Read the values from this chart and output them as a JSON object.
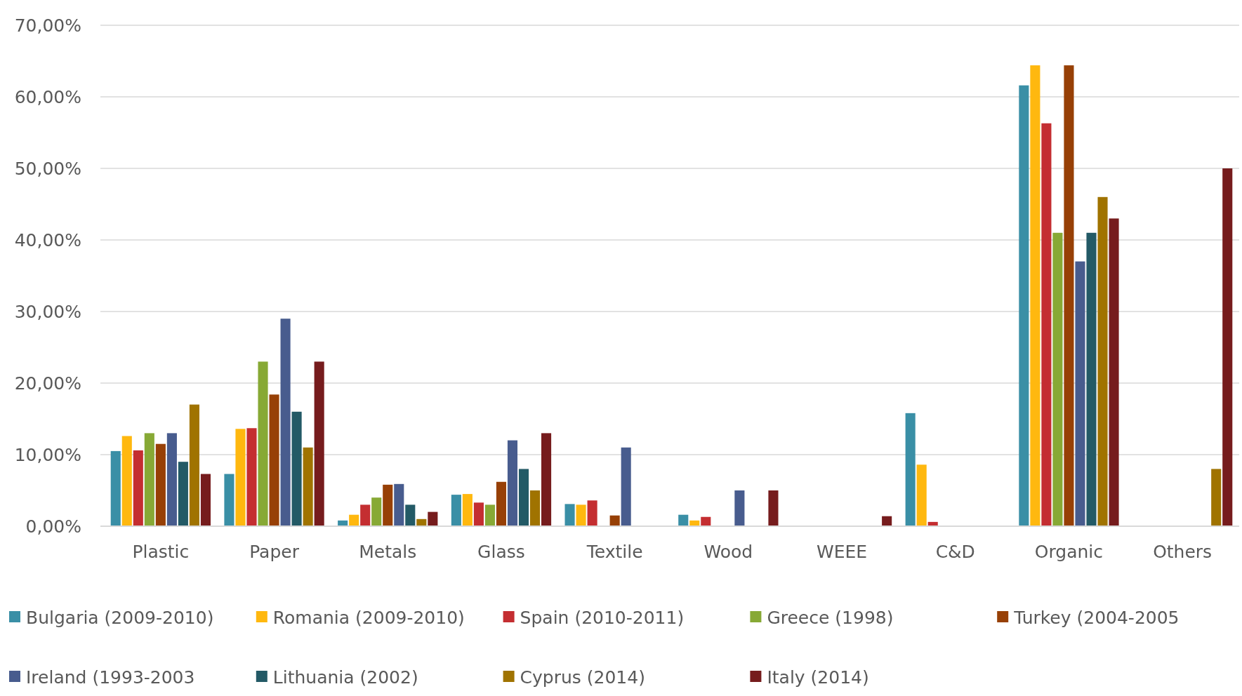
{
  "chart_data": {
    "type": "bar",
    "categories": [
      "Plastic",
      "Paper",
      "Metals",
      "Glass",
      "Textile",
      "Wood",
      "WEEE",
      "C&D",
      "Organic",
      "Others"
    ],
    "series": [
      {
        "name": "Bulgaria (2009-2010)",
        "color": "#3a8fa6",
        "values": [
          10.5,
          7.3,
          0.8,
          4.4,
          3.1,
          1.6,
          0,
          15.8,
          61.6,
          0
        ]
      },
      {
        "name": "Romania (2009-2010)",
        "color": "#ffb80f",
        "values": [
          12.6,
          13.6,
          1.6,
          4.5,
          3.0,
          0.8,
          null,
          8.6,
          64.4,
          0
        ]
      },
      {
        "name": "Spain (2010-2011)",
        "color": "#c42e31",
        "values": [
          10.6,
          13.7,
          3.0,
          3.3,
          3.6,
          1.3,
          null,
          0.6,
          56.3,
          0
        ]
      },
      {
        "name": "Greece (1998)",
        "color": "#87a935",
        "values": [
          13.0,
          23.0,
          4.0,
          3.0,
          0,
          0,
          0,
          0,
          41.0,
          0
        ]
      },
      {
        "name": "Turkey (2004-2005",
        "color": "#974006",
        "values": [
          11.5,
          18.4,
          5.8,
          6.2,
          1.5,
          0,
          0,
          0,
          64.4,
          0
        ]
      },
      {
        "name": "Ireland (1993-2003",
        "color": "#485c8e",
        "values": [
          13.0,
          29.0,
          5.9,
          12.0,
          11.0,
          5.0,
          0,
          0,
          37.0,
          0
        ]
      },
      {
        "name": "Lithuania (2002)",
        "color": "#235a66",
        "values": [
          9.0,
          16.0,
          3.0,
          8.0,
          0,
          0,
          0,
          0,
          41.0,
          0
        ]
      },
      {
        "name": "Cyprus (2014)",
        "color": "#a07300",
        "values": [
          17.0,
          11.0,
          1.0,
          5.0,
          0,
          0,
          0,
          0,
          46.0,
          8.0
        ]
      },
      {
        "name": "Italy (2014)",
        "color": "#761c1d",
        "values": [
          7.3,
          23.0,
          2.0,
          13.0,
          0,
          5.0,
          1.4,
          0,
          43.0,
          50.0
        ]
      }
    ],
    "ylim": [
      0,
      70
    ],
    "yticks": [
      {
        "value": 0,
        "label": "0,00%"
      },
      {
        "value": 10,
        "label": "10,00%"
      },
      {
        "value": 20,
        "label": "20,00%"
      },
      {
        "value": 30,
        "label": "30,00%"
      },
      {
        "value": 40,
        "label": "40,00%"
      },
      {
        "value": 50,
        "label": "50,00%"
      },
      {
        "value": 60,
        "label": "60,00%"
      },
      {
        "value": 70,
        "label": "70,00%"
      }
    ],
    "grid": "y",
    "legend": "bottom"
  }
}
